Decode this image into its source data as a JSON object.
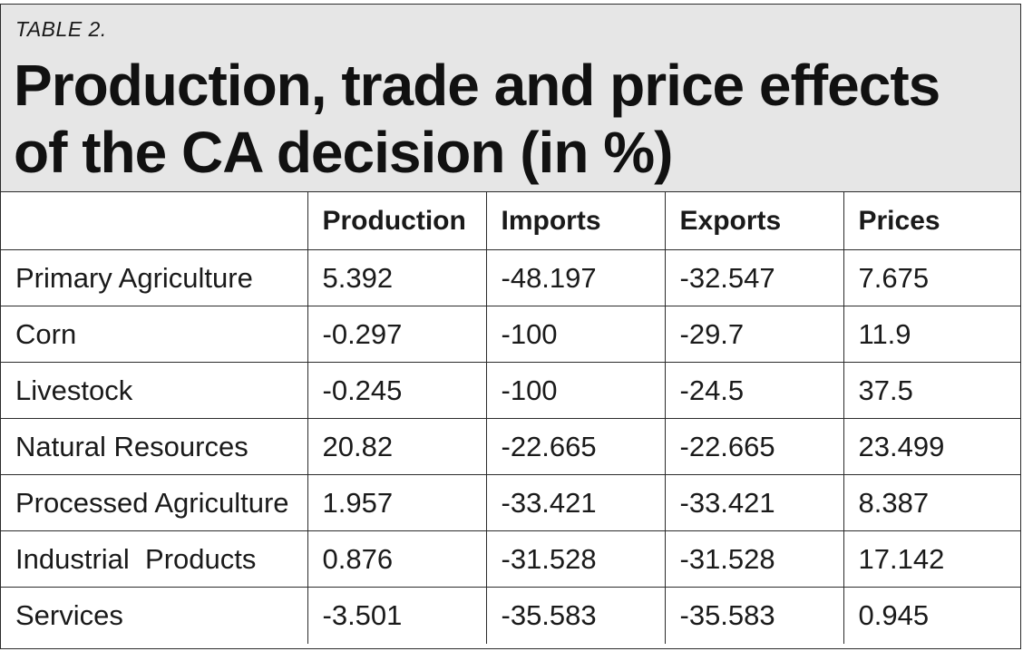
{
  "label": "TABLE 2.",
  "title": "Production, trade and price effects of the CA decision (in %)",
  "columns": [
    "",
    "Production",
    "Imports",
    "Exports",
    "Prices"
  ],
  "rows": [
    [
      "Primary Agriculture",
      "5.392",
      "-48.197",
      "-32.547",
      "7.675"
    ],
    [
      "Corn",
      "-0.297",
      "-100",
      "-29.7",
      "11.9"
    ],
    [
      "Livestock",
      "-0.245",
      "-100",
      "-24.5",
      "37.5"
    ],
    [
      "Natural Resources",
      "20.82",
      "-22.665",
      "-22.665",
      "23.499"
    ],
    [
      "Processed Agriculture",
      "1.957",
      "-33.421",
      "-33.421",
      "8.387"
    ],
    [
      "Industrial  Products",
      "0.876",
      "-31.528",
      "-31.528",
      "17.142"
    ],
    [
      "Services",
      "-3.501",
      "-35.583",
      "-35.583",
      "0.945"
    ]
  ]
}
